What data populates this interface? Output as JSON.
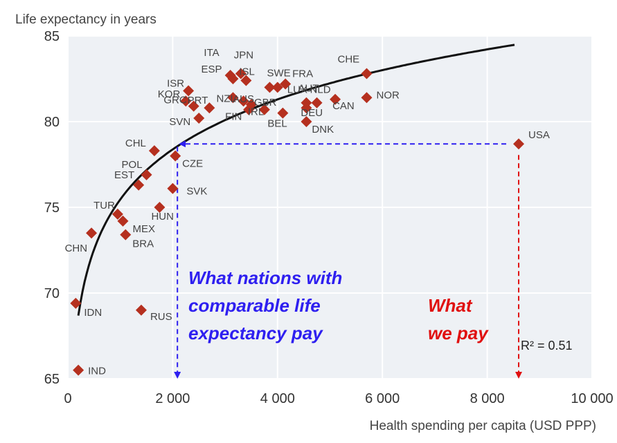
{
  "chart_data": {
    "type": "scatter",
    "ylabel": "Life expectancy in years",
    "xlabel": "Health spending per capita (USD PPP)",
    "xlim": [
      0,
      10000
    ],
    "ylim": [
      65,
      85
    ],
    "x_ticks": [
      0,
      2000,
      4000,
      6000,
      8000,
      10000
    ],
    "x_tick_labels": [
      "0",
      "2 000",
      "4 000",
      "6 000",
      "8 000",
      "10 000"
    ],
    "y_ticks": [
      65,
      70,
      75,
      80,
      85
    ],
    "y_tick_labels": [
      "65",
      "70",
      "75",
      "80",
      "85"
    ],
    "grid": true,
    "marker_color": "#b5301f",
    "trend": "logarithmic",
    "r2_label": "R² = 0.51",
    "points": [
      {
        "label": "IND",
        "x": 200,
        "y": 65.5
      },
      {
        "label": "IDN",
        "x": 150,
        "y": 69.4
      },
      {
        "label": "CHN",
        "x": 450,
        "y": 73.5
      },
      {
        "label": "TUR",
        "x": 950,
        "y": 74.6
      },
      {
        "label": "MEX",
        "x": 1050,
        "y": 74.2
      },
      {
        "label": "BRA",
        "x": 1100,
        "y": 73.4
      },
      {
        "label": "RUS",
        "x": 1400,
        "y": 69.0
      },
      {
        "label": "EST",
        "x": 1350,
        "y": 76.3
      },
      {
        "label": "POL",
        "x": 1500,
        "y": 76.9
      },
      {
        "label": "CHL",
        "x": 1650,
        "y": 78.3
      },
      {
        "label": "HUN",
        "x": 1750,
        "y": 75.0
      },
      {
        "label": "SVK",
        "x": 2000,
        "y": 76.1
      },
      {
        "label": "CZE",
        "x": 2050,
        "y": 78.0
      },
      {
        "label": "ISR",
        "x": 2300,
        "y": 81.8
      },
      {
        "label": "KOR",
        "x": 2250,
        "y": 81.2
      },
      {
        "label": "GRC",
        "x": 2400,
        "y": 80.9
      },
      {
        "label": "SVN",
        "x": 2500,
        "y": 80.2
      },
      {
        "label": "PRT",
        "x": 2700,
        "y": 80.8
      },
      {
        "label": "NZL",
        "x": 3150,
        "y": 81.4
      },
      {
        "label": "ITA",
        "x": 3100,
        "y": 82.7
      },
      {
        "label": "ESP",
        "x": 3150,
        "y": 82.5
      },
      {
        "label": "JPN",
        "x": 3300,
        "y": 82.8
      },
      {
        "label": "ISL",
        "x": 3400,
        "y": 82.4
      },
      {
        "label": "AUS",
        "x": 3350,
        "y": 81.2
      },
      {
        "label": "FIN",
        "x": 3450,
        "y": 80.7
      },
      {
        "label": "IRL",
        "x": 3750,
        "y": 80.7
      },
      {
        "label": "GBR",
        "x": 3500,
        "y": 81.0
      },
      {
        "label": "SWE",
        "x": 3850,
        "y": 82.0
      },
      {
        "label": "LUX",
        "x": 4000,
        "y": 82.0
      },
      {
        "label": "FRA",
        "x": 4150,
        "y": 82.2
      },
      {
        "label": "BEL",
        "x": 4100,
        "y": 80.5
      },
      {
        "label": "AUT",
        "x": 4550,
        "y": 81.1
      },
      {
        "label": "DEU",
        "x": 4550,
        "y": 80.8
      },
      {
        "label": "DNK",
        "x": 4550,
        "y": 80.0
      },
      {
        "label": "NLD",
        "x": 4750,
        "y": 81.1
      },
      {
        "label": "CAN",
        "x": 5100,
        "y": 81.3
      },
      {
        "label": "CHE",
        "x": 5700,
        "y": 82.8
      },
      {
        "label": "NOR",
        "x": 5700,
        "y": 81.4
      },
      {
        "label": "USA",
        "x": 8600,
        "y": 78.7
      }
    ],
    "annotations": [
      {
        "lines": [
          "What nations with",
          "comparable life",
          "expectancy pay"
        ],
        "color": "#2e1ff0"
      },
      {
        "lines": [
          "What",
          "we pay"
        ],
        "color": "#e01010"
      }
    ]
  }
}
